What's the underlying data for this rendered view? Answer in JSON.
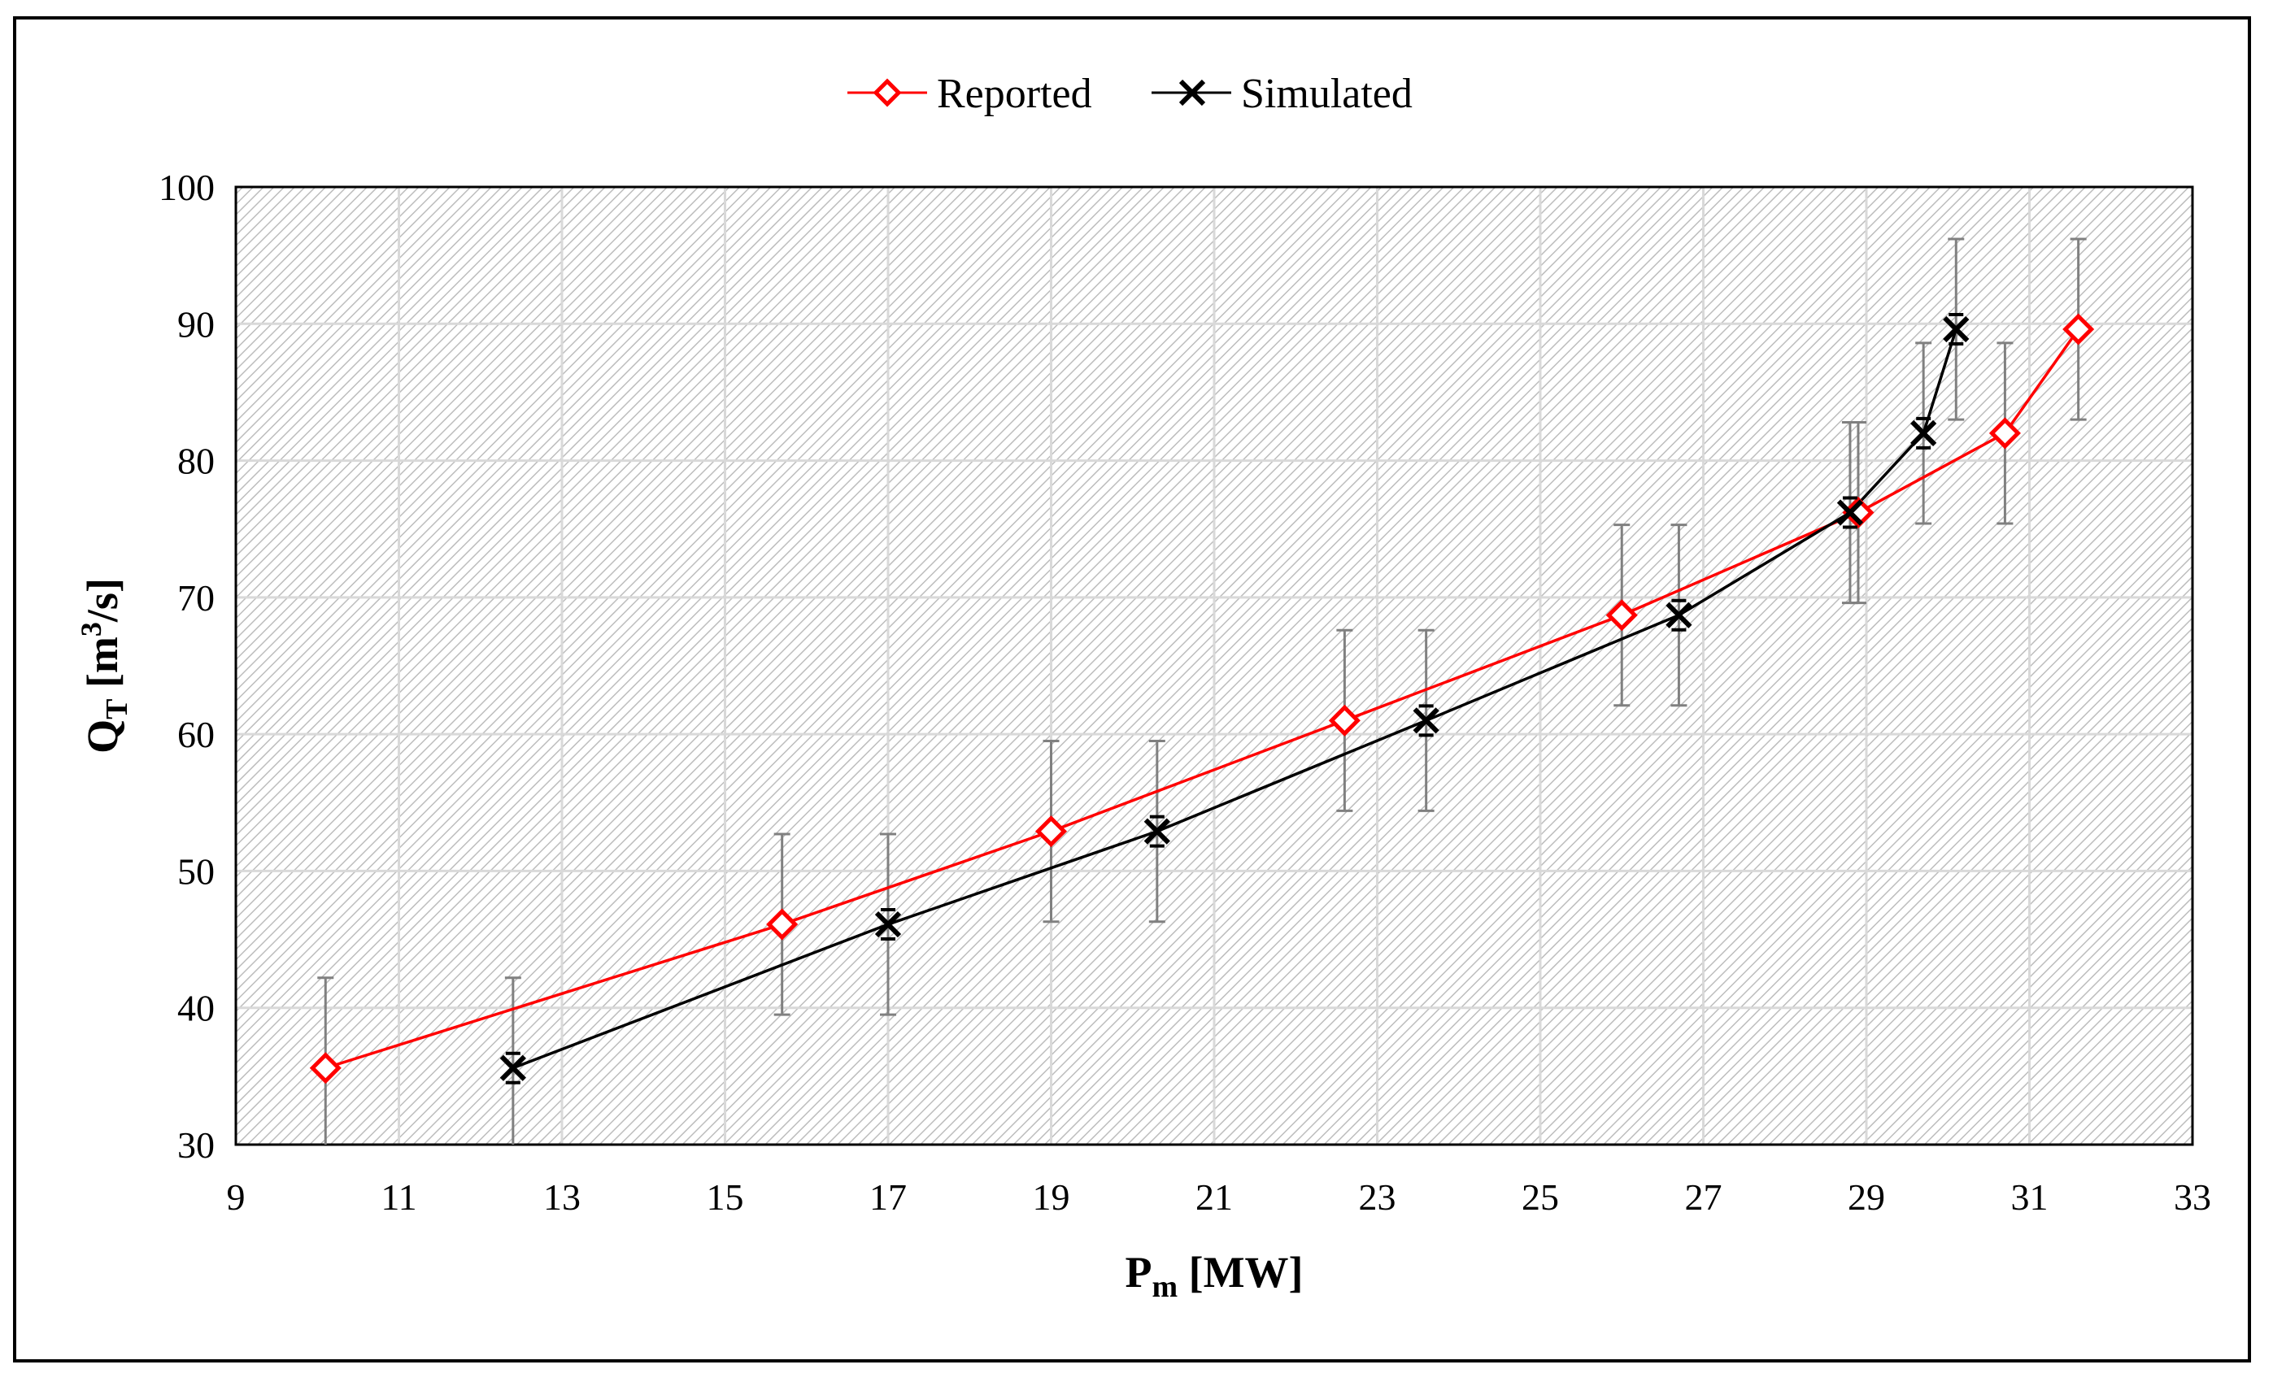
{
  "chart_data": {
    "type": "line",
    "title": "",
    "xlabel": {
      "main": "P",
      "sub": "m",
      "unit": " [MW]"
    },
    "ylabel": {
      "main": "Q",
      "sub": "T",
      "unit_pre": " [m",
      "sup": "3",
      "unit_post": "/s]"
    },
    "xlim": [
      9,
      33
    ],
    "ylim": [
      30,
      100
    ],
    "x_ticks": [
      9,
      11,
      13,
      15,
      17,
      19,
      21,
      23,
      25,
      27,
      29,
      31,
      33
    ],
    "y_ticks": [
      30,
      40,
      50,
      60,
      70,
      80,
      90,
      100
    ],
    "grid": true,
    "legend_position": "top-center",
    "error_bar_halfwidth": 6.6,
    "series": [
      {
        "name": "Reported",
        "color": "#ff0000",
        "marker": "diamond",
        "x": [
          10.1,
          15.7,
          19.0,
          22.6,
          26.0,
          28.9,
          30.7,
          31.6
        ],
        "y": [
          35.6,
          46.1,
          52.9,
          61.0,
          68.7,
          76.2,
          82.0,
          89.6
        ]
      },
      {
        "name": "Simulated",
        "color": "#000000",
        "marker": "x-cross",
        "x": [
          12.4,
          17.0,
          20.3,
          23.6,
          26.7,
          28.8,
          29.7,
          30.1
        ],
        "y": [
          35.6,
          46.1,
          52.9,
          61.0,
          68.7,
          76.2,
          82.0,
          89.6
        ]
      }
    ]
  }
}
